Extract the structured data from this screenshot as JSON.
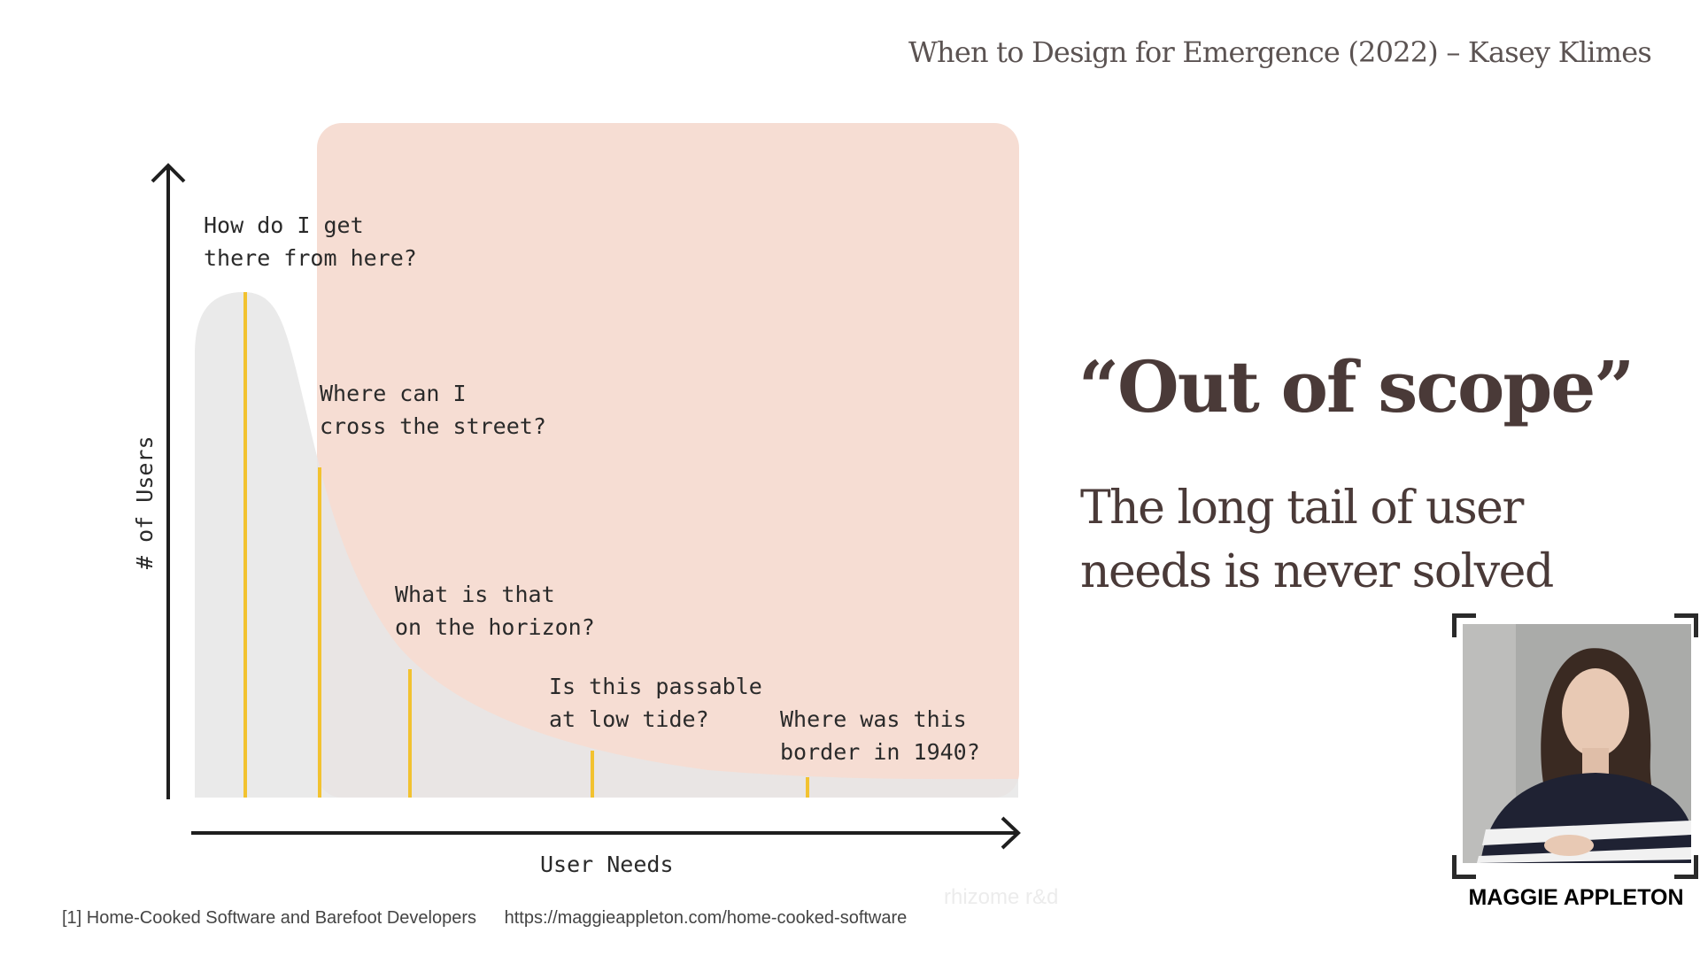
{
  "header": {
    "credit": "When to Design for Emergence (2022) – Kasey Klimes"
  },
  "diagram": {
    "y_axis_label": "# of Users",
    "x_axis_label": "User Needs",
    "annotations": [
      {
        "line1": "How do I get",
        "line2": "there from here?"
      },
      {
        "line1": "Where can I",
        "line2": "cross the street?"
      },
      {
        "line1": "What is that",
        "line2": "on the horizon?"
      },
      {
        "line1": "Is this passable",
        "line2": "at low tide?"
      },
      {
        "line1": "Where was this",
        "line2": "border in 1940?"
      }
    ],
    "colors": {
      "curve_fill": "#e6e6e6",
      "scope_overlay": "#f6ddd3",
      "marker_line": "#f2c230",
      "axis": "#1f1f1f"
    }
  },
  "watermark": "rhizome r&d",
  "main": {
    "title": "“Out of scope”",
    "subtitle_line1": "The long tail of user",
    "subtitle_line2": "needs is never solved"
  },
  "footnote": {
    "reference": "[1] Home-Cooked Software and Barefoot Developers",
    "url": "https://maggieappleton.com/home-cooked-software"
  },
  "speaker": {
    "name": "MAGGIE APPLETON"
  }
}
